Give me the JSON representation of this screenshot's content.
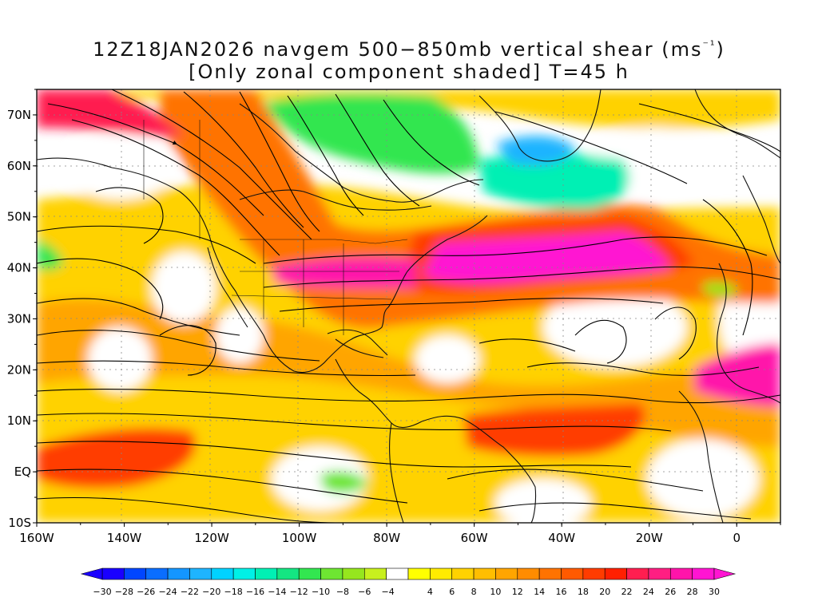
{
  "title": {
    "line1_prefix": "12Z18JAN2026 navgem 500−850mb vertical shear (ms",
    "line1_sup": "⁻¹",
    "line1_suffix": ")",
    "line2": "[Only zonal component shaded] T=45 h"
  },
  "map": {
    "lon_range": [
      -160,
      10
    ],
    "lat_range": [
      -10,
      75
    ],
    "lon_ticks": [
      "160W",
      "140W",
      "120W",
      "100W",
      "80W",
      "60W",
      "40W",
      "20W",
      "0"
    ],
    "lat_ticks": [
      "10S",
      "EQ",
      "10N",
      "20N",
      "30N",
      "40N",
      "50N",
      "60N",
      "70N"
    ]
  },
  "colorbar": {
    "labels": [
      "−30",
      "−28",
      "−26",
      "−24",
      "−22",
      "−20",
      "−18",
      "−16",
      "−14",
      "−12",
      "−10",
      "−8",
      "−6",
      "−4",
      "4",
      "6",
      "8",
      "10",
      "12",
      "14",
      "16",
      "18",
      "20",
      "22",
      "24",
      "26",
      "28",
      "30"
    ],
    "colors": [
      "#1a00ff",
      "#0046ff",
      "#0a6eff",
      "#1496ff",
      "#1eb4ff",
      "#00d2ff",
      "#00f0e6",
      "#00f0b4",
      "#14e682",
      "#32e650",
      "#6ee632",
      "#96e61e",
      "#c8f01e",
      "#ffffff",
      "#ffff00",
      "#ffeb00",
      "#ffd200",
      "#ffbe00",
      "#ffa500",
      "#ff8c00",
      "#ff7300",
      "#ff5a00",
      "#ff3c00",
      "#ff2000",
      "#ff1e50",
      "#ff1e82",
      "#ff14aa",
      "#ff14d2"
    ]
  },
  "colors": {
    "frame": "#000000",
    "coast": "#111111",
    "streamline": "#000000"
  }
}
